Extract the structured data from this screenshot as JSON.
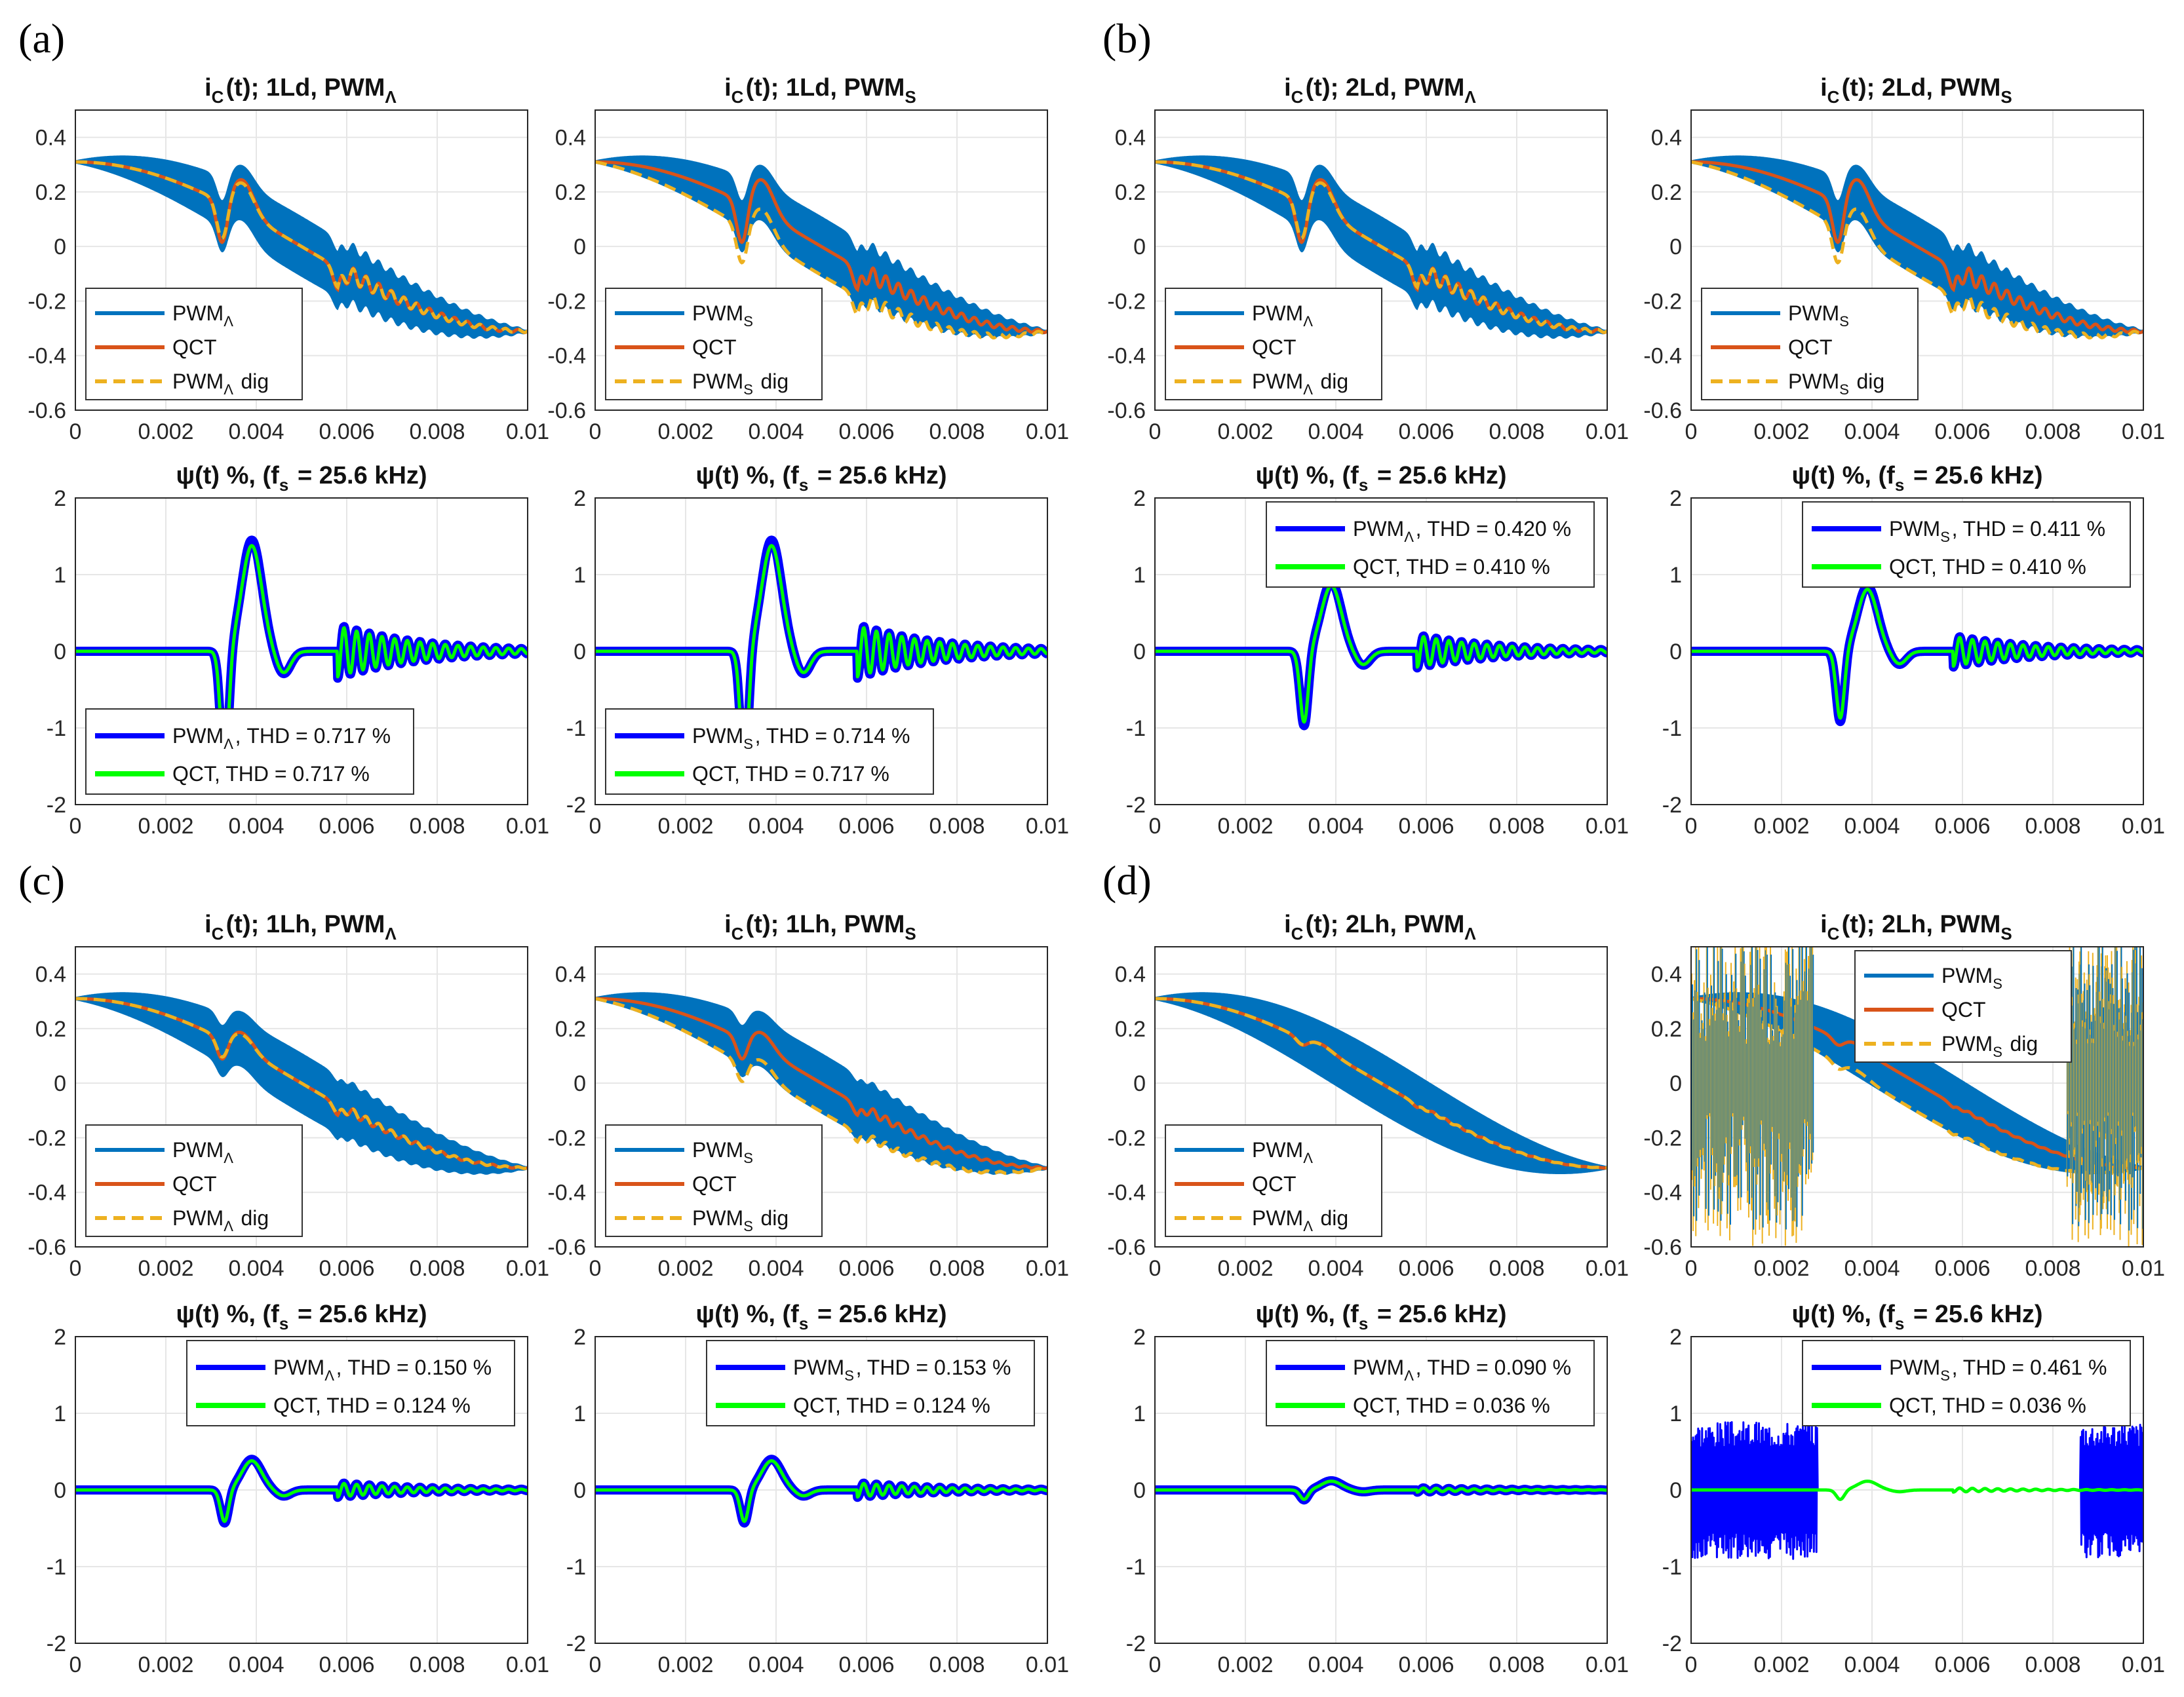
{
  "panel_labels": [
    "(a)",
    "(b)",
    "(c)",
    "(d)"
  ],
  "colors": {
    "pwm_i": "#0072BD",
    "qct_i": "#D95319",
    "dig_i": "#EDB120",
    "pwm_psi": "#0000FF",
    "qct_psi": "#00FF00",
    "grid": "#e6e6e6",
    "axis": "#262626"
  },
  "chart_data": [
    {
      "id": "a1",
      "type": "line",
      "title": "i_C(t); 1Ld, PWM_Λ",
      "xlim": [
        0,
        0.01
      ],
      "ylim": [
        -0.6,
        0.5
      ],
      "xticks": [
        "0",
        "0.002",
        "0.004",
        "0.006",
        "0.008",
        "0.01"
      ],
      "yticks": [
        "-0.6",
        "-0.4",
        "-0.2",
        "0",
        "0.2",
        "0.4"
      ],
      "legend_position": "bottom-left",
      "series": [
        {
          "name": "PWM_Λ",
          "color": "#0072BD",
          "shape": "envelope",
          "amplitude": 0.09
        },
        {
          "name": "QCT",
          "color": "#D95319",
          "shape": "load-dips"
        },
        {
          "name": "PWM_Λ dig",
          "color": "#EDB120",
          "style": "dashed"
        }
      ]
    },
    {
      "id": "a2",
      "type": "line",
      "title": "i_C(t); 1Ld, PWM_S",
      "xlim": [
        0,
        0.01
      ],
      "ylim": [
        -0.6,
        0.5
      ],
      "xticks": [
        "0",
        "0.002",
        "0.004",
        "0.006",
        "0.008",
        "0.01"
      ],
      "yticks": [
        "-0.6",
        "-0.4",
        "-0.2",
        "0",
        "0.2",
        "0.4"
      ],
      "legend_position": "bottom-left",
      "series": [
        {
          "name": "PWM_S",
          "color": "#0072BD",
          "shape": "envelope",
          "amplitude": 0.09
        },
        {
          "name": "QCT",
          "color": "#D95319",
          "shape": "load-dips"
        },
        {
          "name": "PWM_S dig",
          "color": "#EDB120",
          "style": "dashed"
        }
      ]
    },
    {
      "id": "b1",
      "type": "line",
      "title": "i_C(t); 2Ld, PWM_Λ",
      "xlim": [
        0,
        0.01
      ],
      "ylim": [
        -0.6,
        0.5
      ],
      "xticks": [
        "0",
        "0.002",
        "0.004",
        "0.006",
        "0.008",
        "0.01"
      ],
      "yticks": [
        "-0.6",
        "-0.4",
        "-0.2",
        "0",
        "0.2",
        "0.4"
      ],
      "legend_position": "bottom-left",
      "series": [
        {
          "name": "PWM_Λ",
          "color": "#0072BD",
          "shape": "envelope",
          "amplitude": 0.09
        },
        {
          "name": "QCT",
          "color": "#D95319",
          "shape": "load-dips"
        },
        {
          "name": "PWM_Λ dig",
          "color": "#EDB120",
          "style": "dashed"
        }
      ]
    },
    {
      "id": "b2",
      "type": "line",
      "title": "i_C(t); 2Ld, PWM_S",
      "xlim": [
        0,
        0.01
      ],
      "ylim": [
        -0.6,
        0.5
      ],
      "xticks": [
        "0",
        "0.002",
        "0.004",
        "0.006",
        "0.008",
        "0.01"
      ],
      "yticks": [
        "-0.6",
        "-0.4",
        "-0.2",
        "0",
        "0.2",
        "0.4"
      ],
      "legend_position": "bottom-left",
      "series": [
        {
          "name": "PWM_S",
          "color": "#0072BD",
          "shape": "envelope",
          "amplitude": 0.09
        },
        {
          "name": "QCT",
          "color": "#D95319",
          "shape": "load-dips"
        },
        {
          "name": "PWM_S dig",
          "color": "#EDB120",
          "style": "dashed"
        }
      ]
    },
    {
      "id": "a3",
      "type": "line",
      "title": "ψ(t) %, (f_s = 25.6 kHz)",
      "xlim": [
        0,
        0.01
      ],
      "ylim": [
        -2,
        2
      ],
      "xticks": [
        "0",
        "0.002",
        "0.004",
        "0.006",
        "0.008",
        "0.01"
      ],
      "yticks": [
        "-2",
        "-1",
        "0",
        "1",
        "2"
      ],
      "legend_position": "bottom-left",
      "peak": 1.45,
      "series": [
        {
          "name": "PWM_Λ, THD = 0.717 %",
          "color": "#0000FF"
        },
        {
          "name": "QCT, THD = 0.717 %",
          "color": "#00FF00"
        }
      ]
    },
    {
      "id": "a4",
      "type": "line",
      "title": "ψ(t) %, (f_s = 25.6 kHz)",
      "xlim": [
        0,
        0.01
      ],
      "ylim": [
        -2,
        2
      ],
      "xticks": [
        "0",
        "0.002",
        "0.004",
        "0.006",
        "0.008",
        "0.01"
      ],
      "yticks": [
        "-2",
        "-1",
        "0",
        "1",
        "2"
      ],
      "legend_position": "bottom-left",
      "peak": 1.45,
      "series": [
        {
          "name": "PWM_S, THD = 0.714 %",
          "color": "#0000FF"
        },
        {
          "name": "QCT, THD = 0.717 %",
          "color": "#00FF00"
        }
      ]
    },
    {
      "id": "b3",
      "type": "line",
      "title": "ψ(t) %, (f_s = 25.6 kHz)",
      "xlim": [
        0,
        0.01
      ],
      "ylim": [
        -2,
        2
      ],
      "xticks": [
        "0",
        "0.002",
        "0.004",
        "0.006",
        "0.008",
        "0.01"
      ],
      "yticks": [
        "-2",
        "-1",
        "0",
        "1",
        "2"
      ],
      "legend_position": "top-right",
      "peak": 0.9,
      "series": [
        {
          "name": "PWM_Λ, THD = 0.420 %",
          "color": "#0000FF"
        },
        {
          "name": "QCT, THD = 0.410 %",
          "color": "#00FF00"
        }
      ]
    },
    {
      "id": "b4",
      "type": "line",
      "title": "ψ(t) %, (f_s = 25.6 kHz)",
      "xlim": [
        0,
        0.01
      ],
      "ylim": [
        -2,
        2
      ],
      "xticks": [
        "0",
        "0.002",
        "0.004",
        "0.006",
        "0.008",
        "0.01"
      ],
      "yticks": [
        "-2",
        "-1",
        "0",
        "1",
        "2"
      ],
      "legend_position": "top-right",
      "peak": 0.85,
      "series": [
        {
          "name": "PWM_S, THD = 0.411 %",
          "color": "#0000FF"
        },
        {
          "name": "QCT, THD = 0.410 %",
          "color": "#00FF00"
        }
      ]
    },
    {
      "id": "c1",
      "type": "line",
      "title": "i_C(t); 1Lh, PWM_Λ",
      "xlim": [
        0,
        0.01
      ],
      "ylim": [
        -0.6,
        0.5
      ],
      "xticks": [
        "0",
        "0.002",
        "0.004",
        "0.006",
        "0.008",
        "0.01"
      ],
      "yticks": [
        "-0.6",
        "-0.4",
        "-0.2",
        "0",
        "0.2",
        "0.4"
      ],
      "legend_position": "bottom-left",
      "series": [
        {
          "name": "PWM_Λ",
          "color": "#0072BD",
          "shape": "envelope",
          "amplitude": 0.09
        },
        {
          "name": "QCT",
          "color": "#D95319",
          "shape": "load-dips-small"
        },
        {
          "name": "PWM_Λ dig",
          "color": "#EDB120",
          "style": "dashed"
        }
      ]
    },
    {
      "id": "c2",
      "type": "line",
      "title": "i_C(t); 1Lh, PWM_S",
      "xlim": [
        0,
        0.01
      ],
      "ylim": [
        -0.6,
        0.5
      ],
      "xticks": [
        "0",
        "0.002",
        "0.004",
        "0.006",
        "0.008",
        "0.01"
      ],
      "yticks": [
        "-0.6",
        "-0.4",
        "-0.2",
        "0",
        "0.2",
        "0.4"
      ],
      "legend_position": "bottom-left",
      "series": [
        {
          "name": "PWM_S",
          "color": "#0072BD",
          "shape": "envelope",
          "amplitude": 0.09
        },
        {
          "name": "QCT",
          "color": "#D95319",
          "shape": "load-dips-small"
        },
        {
          "name": "PWM_S dig",
          "color": "#EDB120",
          "style": "dashed"
        }
      ]
    },
    {
      "id": "d1",
      "type": "line",
      "title": "i_C(t); 2Lh, PWM_Λ",
      "xlim": [
        0,
        0.01
      ],
      "ylim": [
        -0.6,
        0.5
      ],
      "xticks": [
        "0",
        "0.002",
        "0.004",
        "0.006",
        "0.008",
        "0.01"
      ],
      "yticks": [
        "-0.6",
        "-0.4",
        "-0.2",
        "0",
        "0.2",
        "0.4"
      ],
      "legend_position": "bottom-left",
      "series": [
        {
          "name": "PWM_Λ",
          "color": "#0072BD",
          "shape": "envelope",
          "amplitude": 0.09
        },
        {
          "name": "QCT",
          "color": "#D95319",
          "shape": "smooth"
        },
        {
          "name": "PWM_Λ dig",
          "color": "#EDB120",
          "style": "dashed"
        }
      ]
    },
    {
      "id": "d2",
      "type": "line",
      "title": "i_C(t); 2Lh, PWM_S",
      "xlim": [
        0,
        0.01
      ],
      "ylim": [
        -0.6,
        0.5
      ],
      "xticks": [
        "0",
        "0.002",
        "0.004",
        "0.006",
        "0.008",
        "0.01"
      ],
      "yticks": [
        "-0.6",
        "-0.4",
        "-0.2",
        "0",
        "0.2",
        "0.4"
      ],
      "legend_position": "top-center",
      "series": [
        {
          "name": "PWM_S",
          "color": "#0072BD",
          "shape": "envelope",
          "amplitude": 0.09
        },
        {
          "name": "QCT",
          "color": "#D95319",
          "shape": "smooth"
        },
        {
          "name": "PWM_S dig",
          "color": "#EDB120",
          "style": "dashed",
          "unstable_ranges": [
            [
              0,
              0.0027
            ],
            [
              0.0083,
              0.01
            ]
          ]
        }
      ]
    },
    {
      "id": "c3",
      "type": "line",
      "title": "ψ(t) %, (f_s = 25.6 kHz)",
      "xlim": [
        0,
        0.01
      ],
      "ylim": [
        -2,
        2
      ],
      "xticks": [
        "0",
        "0.002",
        "0.004",
        "0.006",
        "0.008",
        "0.01"
      ],
      "yticks": [
        "-2",
        "-1",
        "0",
        "1",
        "2"
      ],
      "legend_position": "top-right",
      "peak": 0.4,
      "series": [
        {
          "name": "PWM_Λ, THD = 0.150 %",
          "color": "#0000FF"
        },
        {
          "name": "QCT, THD = 0.124 %",
          "color": "#00FF00"
        }
      ]
    },
    {
      "id": "c4",
      "type": "line",
      "title": "ψ(t) %, (f_s = 25.6 kHz)",
      "xlim": [
        0,
        0.01
      ],
      "ylim": [
        -2,
        2
      ],
      "xticks": [
        "0",
        "0.002",
        "0.004",
        "0.006",
        "0.008",
        "0.01"
      ],
      "yticks": [
        "-2",
        "-1",
        "0",
        "1",
        "2"
      ],
      "legend_position": "top-right",
      "peak": 0.4,
      "series": [
        {
          "name": "PWM_S, THD = 0.153 %",
          "color": "#0000FF"
        },
        {
          "name": "QCT, THD = 0.124 %",
          "color": "#00FF00"
        }
      ]
    },
    {
      "id": "d3",
      "type": "line",
      "title": "ψ(t) %, (f_s = 25.6 kHz)",
      "xlim": [
        0,
        0.01
      ],
      "ylim": [
        -2,
        2
      ],
      "xticks": [
        "0",
        "0.002",
        "0.004",
        "0.006",
        "0.008",
        "0.01"
      ],
      "yticks": [
        "-2",
        "-1",
        "0",
        "1",
        "2"
      ],
      "legend_position": "top-right",
      "peak": 0.12,
      "series": [
        {
          "name": "PWM_Λ, THD = 0.090 %",
          "color": "#0000FF"
        },
        {
          "name": "QCT, THD = 0.036 %",
          "color": "#00FF00"
        }
      ]
    },
    {
      "id": "d4",
      "type": "line",
      "title": "ψ(t) %, (f_s = 25.6 kHz)",
      "xlim": [
        0,
        0.01
      ],
      "ylim": [
        -2,
        2
      ],
      "xticks": [
        "0",
        "0.002",
        "0.004",
        "0.006",
        "0.008",
        "0.01"
      ],
      "yticks": [
        "-2",
        "-1",
        "0",
        "1",
        "2"
      ],
      "legend_position": "top-right",
      "peak": 0.12,
      "series": [
        {
          "name": "PWM_S, THD = 0.461 %",
          "color": "#0000FF"
        },
        {
          "name": "QCT, THD = 0.036 %",
          "color": "#00FF00"
        }
      ]
    }
  ]
}
